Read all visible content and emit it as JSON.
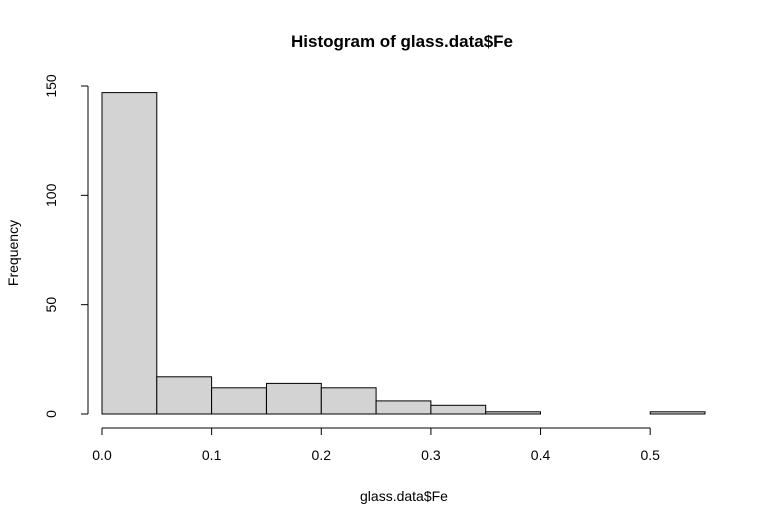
{
  "chart_data": {
    "type": "bar",
    "title": "Histogram of glass.data$Fe",
    "xlabel": "glass.data$Fe",
    "ylabel": "Frequency",
    "bins": [
      {
        "start": 0.0,
        "end": 0.05,
        "count": 147
      },
      {
        "start": 0.05,
        "end": 0.1,
        "count": 17
      },
      {
        "start": 0.1,
        "end": 0.15,
        "count": 12
      },
      {
        "start": 0.15,
        "end": 0.2,
        "count": 14
      },
      {
        "start": 0.2,
        "end": 0.25,
        "count": 12
      },
      {
        "start": 0.25,
        "end": 0.3,
        "count": 6
      },
      {
        "start": 0.3,
        "end": 0.35,
        "count": 4
      },
      {
        "start": 0.35,
        "end": 0.4,
        "count": 1
      },
      {
        "start": 0.4,
        "end": 0.45,
        "count": 0
      },
      {
        "start": 0.45,
        "end": 0.5,
        "count": 0
      },
      {
        "start": 0.5,
        "end": 0.55,
        "count": 1
      }
    ],
    "xlim": [
      0.0,
      0.55
    ],
    "ylim": [
      0,
      150
    ],
    "x_ticks": [
      0.0,
      0.1,
      0.2,
      0.3,
      0.4,
      0.5
    ],
    "x_tick_labels": [
      "0.0",
      "0.1",
      "0.2",
      "0.3",
      "0.4",
      "0.5"
    ],
    "y_ticks": [
      0,
      50,
      100,
      150
    ],
    "y_tick_labels": [
      "0",
      "50",
      "100",
      "150"
    ],
    "grid": false,
    "bar_color": "#d3d3d3"
  }
}
